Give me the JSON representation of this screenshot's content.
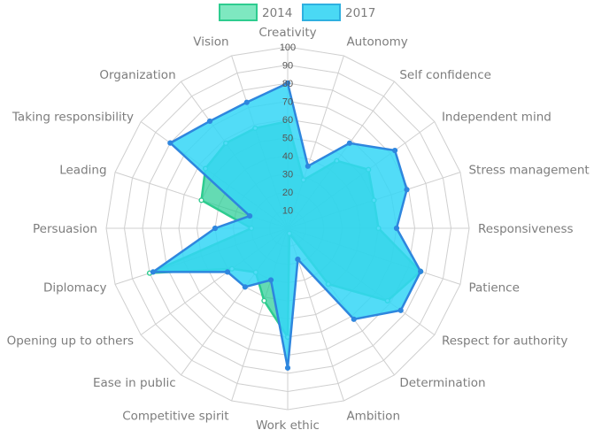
{
  "chart_data": {
    "type": "radar",
    "categories": [
      "Creativity",
      "Autonomy",
      "Self confidence",
      "Independent mind",
      "Stress management",
      "Responsiveness",
      "Patience",
      "Respect for authority",
      "Determination",
      "Ambition",
      "Work ethic",
      "Competitive spirit",
      "Ease in public",
      "Opening up to others",
      "Diplomacy",
      "Persuasion",
      "Leading",
      "Taking responsibility",
      "Organization",
      "Vision"
    ],
    "r_ticks": [
      "10",
      "20",
      "30",
      "40",
      "50",
      "60",
      "70",
      "80",
      "90",
      "100"
    ],
    "r_range": [
      0,
      100
    ],
    "legend_position": "top",
    "series": [
      {
        "name": "2014",
        "color": "#2ecc8f",
        "fill": "rgba(40,205,150,0.72)",
        "values": [
          59,
          28,
          46,
          55,
          50,
          50,
          77,
          68,
          38,
          3,
          60,
          42,
          30,
          38,
          80,
          20,
          50,
          56,
          58,
          58
        ]
      },
      {
        "name": "2017",
        "color": "#2e86de",
        "fill": "rgba(52,214,246,0.85)",
        "values": [
          80,
          36,
          58,
          73,
          69,
          60,
          77,
          77,
          62,
          18,
          77,
          30,
          40,
          41,
          78,
          40,
          22,
          80,
          73,
          73
        ]
      }
    ]
  }
}
